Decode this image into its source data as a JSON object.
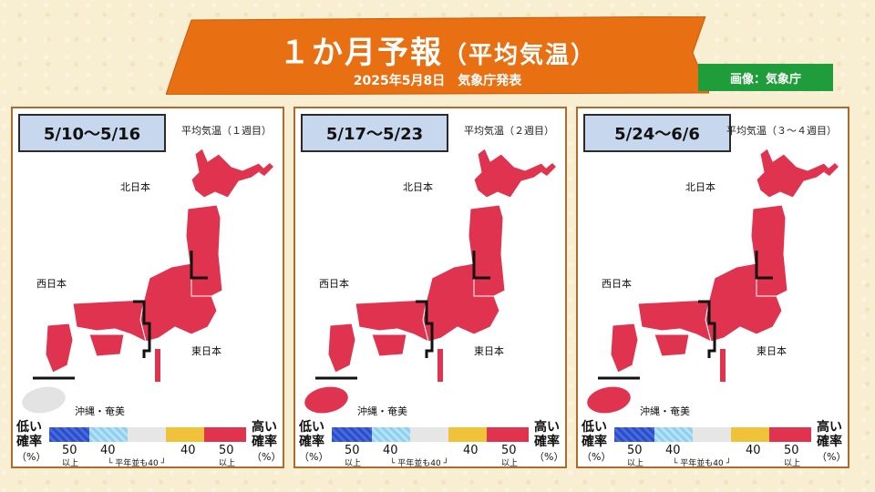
{
  "header": {
    "title_main": "１か月予報",
    "title_paren": "（平均気温）",
    "subtitle": "2025年5月8日　気象庁発表",
    "credit": "画像：気象庁"
  },
  "colors": {
    "banner": "#e86f12",
    "map_red": "#e0334f",
    "neutral_gray": "#e3e3e3",
    "low_blue_dark": "#2a4fc9",
    "low_blue_light": "#8fd0f0",
    "normal_gray": "#e6e6e6",
    "high_yellow": "#f0c23a",
    "high_red": "#e0334f"
  },
  "panels": [
    {
      "date_range": "5/10〜5/16",
      "week_label": "平均気温（１週目）",
      "okinawa_category": "normal",
      "regions": {
        "north": "北日本",
        "west": "西日本",
        "east": "東日本",
        "okinawa": "沖縄・奄美"
      }
    },
    {
      "date_range": "5/17〜5/23",
      "week_label": "平均気温（２週目）",
      "okinawa_category": "high",
      "regions": {
        "north": "北日本",
        "west": "西日本",
        "east": "東日本",
        "okinawa": "沖縄・奄美"
      }
    },
    {
      "date_range": "5/24〜6/6",
      "week_label": "平均気温（３〜４週目）",
      "okinawa_category": "high",
      "regions": {
        "north": "北日本",
        "west": "西日本",
        "east": "東日本",
        "okinawa": "沖縄・奄美"
      }
    }
  ],
  "legend": {
    "low_label": "低い確率",
    "high_label": "高い確率",
    "percent": "（%）",
    "ticks": [
      "50",
      "40",
      "40",
      "50"
    ],
    "ijo": "以上",
    "normal_note": "平年並も40"
  }
}
